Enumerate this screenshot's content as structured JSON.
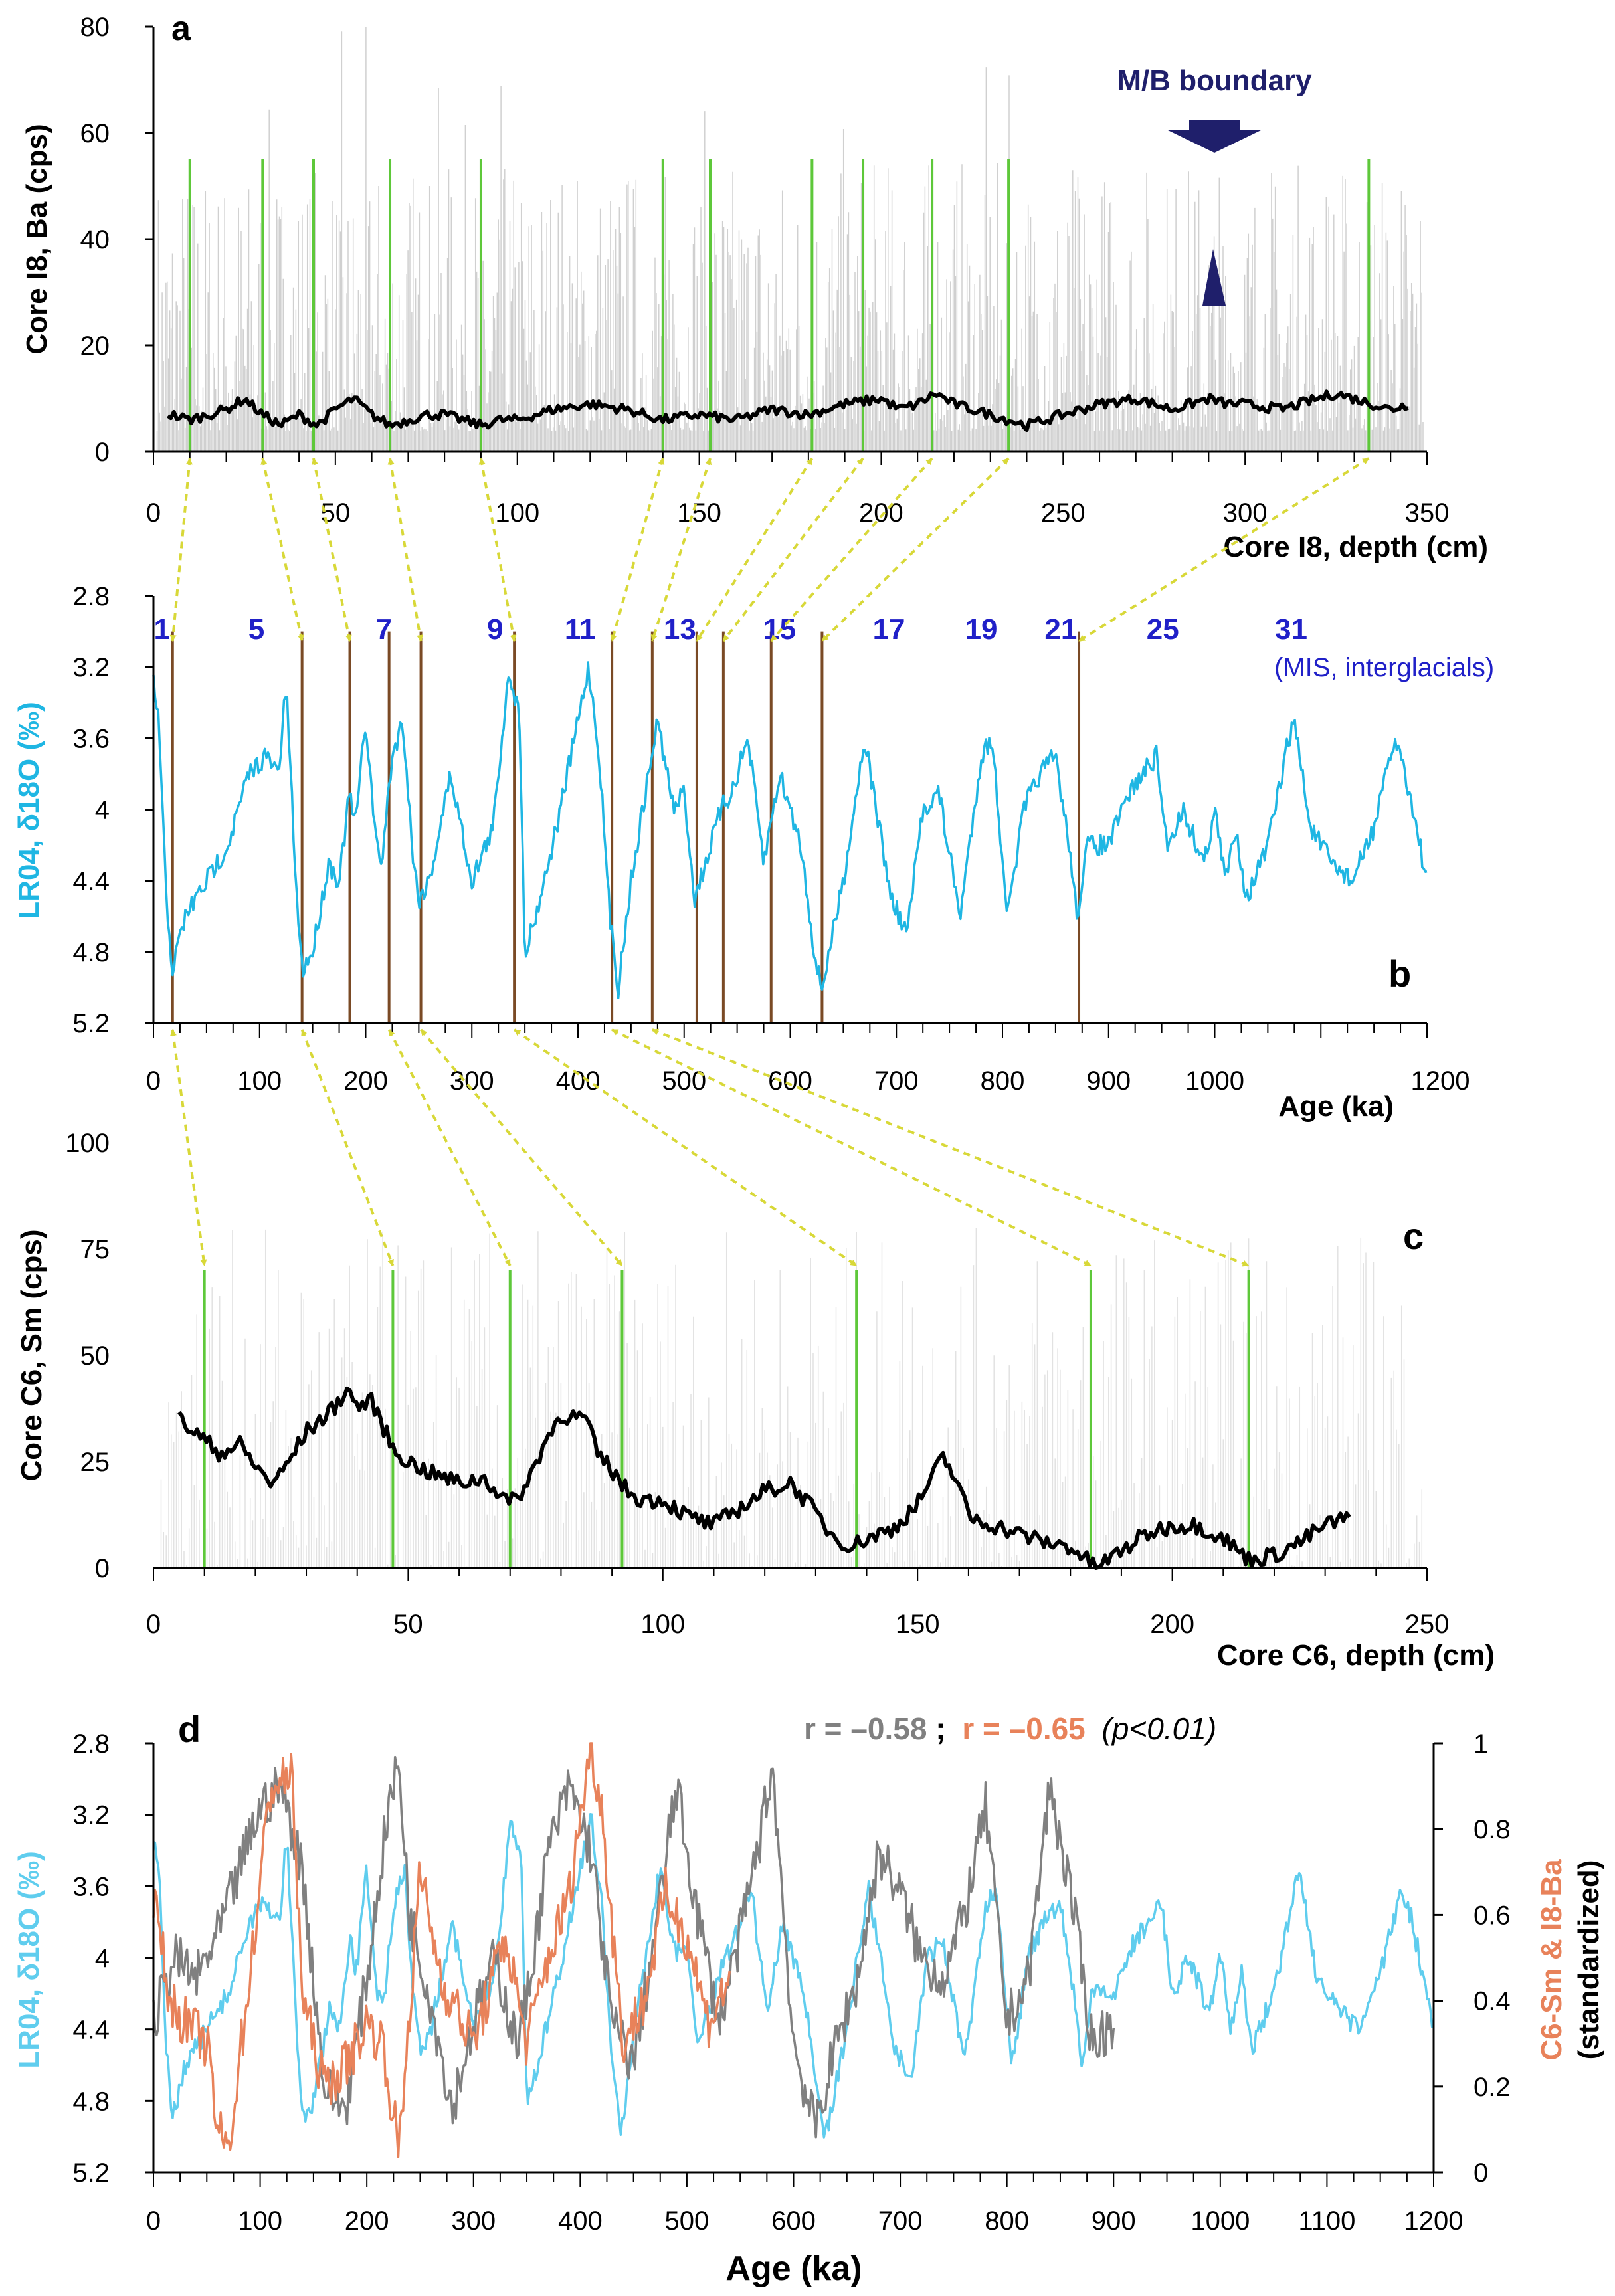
{
  "colors": {
    "raw_signal": "#d0d0d0",
    "smoothed": "#000000",
    "tie_line": "#5ec83a",
    "mis_line": "#7a4a25",
    "d18o": "#1fb6e3",
    "d18o_d": "#5fcdee",
    "sm": "#e8825a",
    "ba": "#808080",
    "arrow": "#d8d838",
    "mb": "#1f1f6b",
    "mis_label": "#2020c8",
    "r_gray": "#808080",
    "r_orange": "#e8825a"
  },
  "chart_data": [
    {
      "panel": "a",
      "type": "line",
      "xlabel": "Core I8, depth (cm)",
      "ylabel": "Core I8, Ba (cps)",
      "xlim": [
        0,
        350
      ],
      "ylim": [
        0,
        80
      ],
      "xticks": [
        "0",
        "50",
        "100",
        "150",
        "200",
        "250",
        "300",
        "350"
      ],
      "yticks": [
        "0",
        "20",
        "40",
        "60",
        "80"
      ],
      "series": [
        {
          "name": "Ba raw",
          "style": "raw"
        },
        {
          "name": "Ba smoothed",
          "x": [
            5,
            10,
            15,
            20,
            25,
            30,
            35,
            40,
            45,
            50,
            55,
            60,
            65,
            70,
            75,
            80,
            85,
            90,
            95,
            100,
            110,
            120,
            130,
            140,
            150,
            160,
            170,
            180,
            190,
            200,
            205,
            210,
            215,
            220,
            230,
            240,
            250,
            260,
            270,
            280,
            290,
            295,
            300,
            310,
            320,
            325,
            330,
            335,
            340,
            345
          ],
          "values": [
            7,
            6,
            7,
            8,
            10,
            7,
            5,
            7,
            5,
            8,
            10,
            7,
            5,
            6,
            7,
            7,
            6,
            5,
            6,
            6,
            8,
            9,
            8,
            6,
            7,
            6,
            8,
            7,
            9,
            10,
            8,
            9,
            11,
            9,
            7,
            5,
            7,
            9,
            10,
            8,
            10,
            9,
            9,
            8,
            10,
            11,
            10,
            9,
            8,
            9
          ]
        }
      ],
      "tie_lines": [
        10,
        30,
        44,
        65,
        90,
        140,
        153,
        181,
        195,
        214,
        235,
        334
      ],
      "annotation": {
        "label": "M/B boundary",
        "x": 290
      },
      "panel_label": "a"
    },
    {
      "panel": "b",
      "type": "line",
      "xlabel": "Age (ka)",
      "ylabel": "LR04, δ18O (‰)",
      "xlim": [
        0,
        1200
      ],
      "ylim": [
        2.8,
        5.2
      ],
      "y_inverted": true,
      "xticks": [
        "0",
        "100",
        "200",
        "300",
        "400",
        "500",
        "600",
        "700",
        "800",
        "900",
        "1000",
        "1200"
      ],
      "yticks": [
        "2.8",
        "3.2",
        "3.6",
        "4",
        "4.4",
        "4.8",
        "5.2"
      ],
      "series": [
        {
          "name": "LR04",
          "x": [
            0,
            5,
            12,
            18,
            30,
            50,
            70,
            90,
            105,
            118,
            125,
            135,
            140,
            150,
            165,
            175,
            185,
            190,
            200,
            210,
            215,
            225,
            235,
            245,
            250,
            260,
            280,
            300,
            320,
            335,
            345,
            350,
            360,
            380,
            400,
            410,
            420,
            430,
            438,
            450,
            475,
            490,
            500,
            510,
            525,
            535,
            545,
            560,
            575,
            590,
            610,
            625,
            630,
            650,
            670,
            695,
            710,
            725,
            740,
            760,
            780,
            790,
            805,
            820,
            835,
            850,
            865,
            870,
            880,
            900,
            920,
            945,
            955,
            970,
            990,
            1000,
            1010,
            1020,
            1030,
            1050,
            1070,
            1075,
            1090,
            1110,
            1130,
            1150,
            1170,
            1180,
            1200
          ],
          "values": [
            3.3,
            3.5,
            4.5,
            4.9,
            4.6,
            4.4,
            4.2,
            3.8,
            3.7,
            3.8,
            3.3,
            4.5,
            4.9,
            4.8,
            4.3,
            4.4,
            3.9,
            4.1,
            3.5,
            4.2,
            4.3,
            3.7,
            3.5,
            4.3,
            4.5,
            4.4,
            3.8,
            4.4,
            4.1,
            3.2,
            3.5,
            4.8,
            4.6,
            4.1,
            3.5,
            3.2,
            3.7,
            4.6,
            5.0,
            4.4,
            3.5,
            4.0,
            3.9,
            4.5,
            4.2,
            4.0,
            3.9,
            3.6,
            4.3,
            3.8,
            4.2,
            4.9,
            5.0,
            4.4,
            3.6,
            4.5,
            4.7,
            4.0,
            3.9,
            4.6,
            3.7,
            3.6,
            4.6,
            4.0,
            3.8,
            3.7,
            4.3,
            4.6,
            4.2,
            4.2,
            3.9,
            3.7,
            4.2,
            4.0,
            4.3,
            4.0,
            4.4,
            4.1,
            4.5,
            4.2,
            3.6,
            3.5,
            4.1,
            4.3,
            4.4,
            4.1,
            3.6,
            3.8,
            4.4
          ]
        }
      ],
      "mis_lines": [
        18,
        140,
        185,
        222,
        252,
        340,
        432,
        470,
        512,
        537,
        582,
        630,
        872
      ],
      "mis_labels": [
        {
          "label": "1",
          "x": 8
        },
        {
          "label": "5",
          "x": 97
        },
        {
          "label": "7",
          "x": 217
        },
        {
          "label": "9",
          "x": 322
        },
        {
          "label": "11",
          "x": 402
        },
        {
          "label": "13",
          "x": 496
        },
        {
          "label": "15",
          "x": 590
        },
        {
          "label": "17",
          "x": 693
        },
        {
          "label": "19",
          "x": 780
        },
        {
          "label": "21",
          "x": 855
        },
        {
          "label": "25",
          "x": 951
        },
        {
          "label": "31",
          "x": 1072
        }
      ],
      "mis_caption": "(MIS, interglacials)",
      "panel_label": "b"
    },
    {
      "panel": "c",
      "type": "line",
      "xlabel": "Core C6, depth (cm)",
      "ylabel": "Core C6, Sm (cps)",
      "xlim": [
        0,
        250
      ],
      "ylim": [
        0,
        100
      ],
      "xticks": [
        "0",
        "50",
        "100",
        "150",
        "200",
        "250"
      ],
      "yticks": [
        "0",
        "25",
        "50",
        "75",
        "100"
      ],
      "series": [
        {
          "name": "Sm raw",
          "style": "raw"
        },
        {
          "name": "Sm smoothed",
          "x": [
            5,
            10,
            13,
            17,
            20,
            23,
            25,
            30,
            35,
            38,
            40,
            43,
            47,
            50,
            55,
            60,
            65,
            70,
            73,
            77,
            80,
            85,
            87,
            90,
            93,
            96,
            100,
            105,
            110,
            115,
            120,
            125,
            130,
            133,
            137,
            140,
            145,
            150,
            155,
            158,
            160,
            165,
            170,
            175,
            180,
            185,
            190,
            195,
            200,
            205,
            210,
            215,
            220,
            225,
            230,
            235
          ],
          "values": [
            35,
            30,
            27,
            29,
            24,
            20,
            22,
            32,
            37,
            42,
            38,
            39,
            28,
            25,
            22,
            20,
            21,
            15,
            19,
            30,
            36,
            35,
            27,
            23,
            18,
            16,
            16,
            12,
            10,
            14,
            18,
            20,
            13,
            8,
            5,
            7,
            9,
            15,
            26,
            20,
            12,
            10,
            8,
            6,
            5,
            0,
            4,
            8,
            10,
            10,
            7,
            2,
            3,
            6,
            10,
            12
          ]
        }
      ],
      "tie_lines": [
        10,
        47,
        70,
        92,
        138,
        184,
        215
      ],
      "panel_label": "c"
    },
    {
      "panel": "d",
      "type": "line",
      "xlabel": "Age (ka)",
      "ylabel_left": "LR04, δ18O (‰)",
      "ylabel_right_1": "C6-Sm & I8-Ba",
      "ylabel_right_2": "(standardized)",
      "xlim": [
        0,
        1200
      ],
      "ylim_left": [
        2.8,
        5.2
      ],
      "ylim_right": [
        0,
        1
      ],
      "xticks": [
        "0",
        "100",
        "200",
        "300",
        "400",
        "500",
        "600",
        "700",
        "800",
        "900",
        "1000",
        "1100",
        "1200"
      ],
      "yticks_left": [
        "2.8",
        "3.2",
        "3.6",
        "4",
        "4.4",
        "4.8",
        "5.2"
      ],
      "yticks_right": [
        "0",
        "0.2",
        "0.4",
        "0.6",
        "0.8",
        "1"
      ],
      "series": [
        {
          "name": "LR04 δ18O",
          "axis": "left",
          "ref": "panel b"
        },
        {
          "name": "C6-Sm",
          "axis": "right",
          "x": [
            0,
            15,
            30,
            50,
            60,
            70,
            90,
            110,
            130,
            140,
            160,
            180,
            200,
            215,
            230,
            250,
            270,
            300,
            330,
            350,
            370,
            390,
            410,
            420,
            440,
            460,
            480,
            500,
            520,
            540
          ],
          "values": [
            0.65,
            0.4,
            0.35,
            0.3,
            0.1,
            0.05,
            0.45,
            0.9,
            0.92,
            0.4,
            0.2,
            0.25,
            0.35,
            0.3,
            0.05,
            0.7,
            0.45,
            0.3,
            0.55,
            0.3,
            0.5,
            0.65,
            1.0,
            0.85,
            0.3,
            0.4,
            0.65,
            0.55,
            0.35,
            0.45
          ]
        },
        {
          "name": "I8-Ba",
          "axis": "right",
          "x": [
            0,
            20,
            40,
            60,
            80,
            100,
            120,
            140,
            160,
            180,
            200,
            220,
            230,
            240,
            260,
            280,
            300,
            320,
            340,
            350,
            370,
            390,
            410,
            430,
            450,
            470,
            490,
            510,
            530,
            550,
            570,
            580,
            600,
            620,
            640,
            660,
            680,
            700,
            720,
            740,
            760,
            780,
            800,
            820,
            840,
            860,
            880,
            900
          ],
          "values": [
            0.35,
            0.5,
            0.45,
            0.55,
            0.7,
            0.85,
            0.9,
            0.7,
            0.2,
            0.15,
            0.45,
            0.85,
            0.95,
            0.6,
            0.4,
            0.15,
            0.35,
            0.5,
            0.3,
            0.4,
            0.75,
            0.9,
            0.75,
            0.35,
            0.25,
            0.55,
            0.9,
            0.6,
            0.35,
            0.55,
            0.8,
            0.95,
            0.3,
            0.1,
            0.3,
            0.45,
            0.75,
            0.65,
            0.5,
            0.45,
            0.6,
            0.85,
            0.35,
            0.45,
            0.9,
            0.65,
            0.3,
            0.35
          ]
        }
      ],
      "annotation": {
        "r1": "r = –0.58",
        "sep": ";",
        "r2": "r = –0.65",
        "p": "(p<0.01)"
      },
      "panel_label": "d"
    }
  ]
}
